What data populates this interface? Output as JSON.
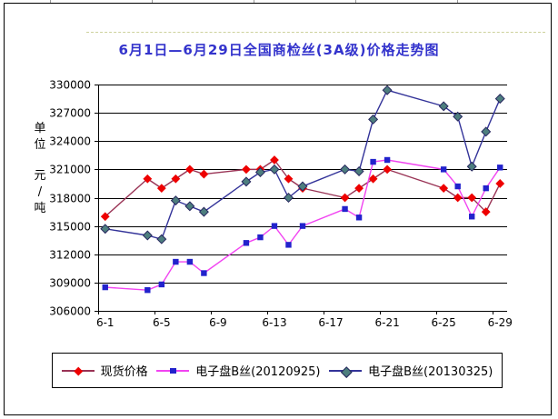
{
  "y_axis": {
    "unit_chars": [
      "单",
      "位",
      "",
      "元",
      "/",
      "吨"
    ],
    "tick_labels": [
      "330000",
      "327000",
      "324000",
      "321000",
      "318000",
      "315000",
      "312000",
      "309000",
      "306000"
    ]
  },
  "x_axis": {
    "tick_labels": [
      "6-1",
      "6-5",
      "6-9",
      "6-13",
      "6-17",
      "6-21",
      "6-25",
      "6-29"
    ]
  },
  "chart_data": {
    "type": "line",
    "title": "6月1日—6月29日全国商检丝(3A级)价格走势图",
    "title_color": "#3333cc",
    "ylabel": "单位 元/吨",
    "xlabel": "",
    "ylim": [
      306000,
      330000
    ],
    "ystep": 3000,
    "x_total_days": 29,
    "grid": true,
    "legend_position": "bottom",
    "x": [
      "6-1",
      "6-4",
      "6-5",
      "6-6",
      "6-7",
      "6-8",
      "6-11",
      "6-12",
      "6-13",
      "6-14",
      "6-15",
      "6-18",
      "6-19",
      "6-20",
      "6-21",
      "6-25",
      "6-26",
      "6-27",
      "6-28",
      "6-29"
    ],
    "series": [
      {
        "name": "现货价格",
        "marker": "diamond",
        "marker_color": "#ee0000",
        "line_color": "#993355",
        "values": [
          316000,
          320000,
          319000,
          320000,
          321000,
          320500,
          321000,
          321000,
          322000,
          320000,
          319000,
          318000,
          319000,
          320000,
          321000,
          319000,
          318000,
          318000,
          316500,
          319500
        ]
      },
      {
        "name": "电子盘B丝(20120925)",
        "marker": "square",
        "marker_color": "#2222cc",
        "line_color": "#f144f1",
        "values": [
          308500,
          308200,
          308800,
          311200,
          311200,
          310000,
          313200,
          313800,
          315000,
          313000,
          315000,
          316800,
          315900,
          321800,
          322000,
          321000,
          319200,
          316000,
          319000,
          321200
        ]
      },
      {
        "name": "电子盘B丝(20130325)",
        "marker": "diamond",
        "marker_color": "#4d7e7e",
        "marker_stroke": "#26265e",
        "line_color": "#333399",
        "values": [
          314700,
          314000,
          313600,
          317700,
          317100,
          316500,
          319700,
          320700,
          321000,
          318000,
          319200,
          321000,
          320800,
          326300,
          329400,
          327700,
          326600,
          321300,
          325000,
          328500
        ]
      }
    ]
  }
}
